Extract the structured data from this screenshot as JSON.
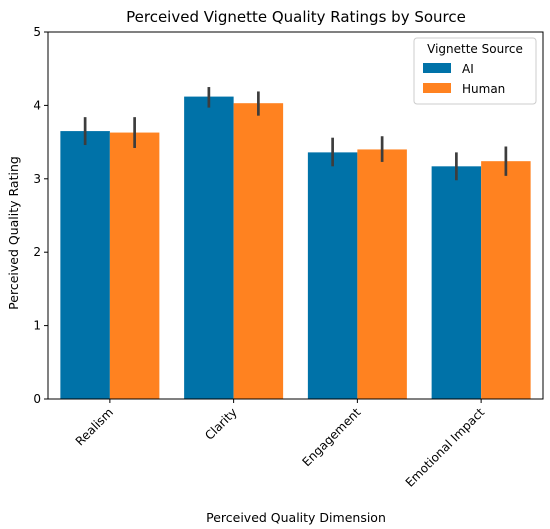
{
  "chart_data": {
    "type": "bar",
    "title": "Perceived Vignette Quality Ratings by Source",
    "xlabel": "Perceived Quality Dimension",
    "ylabel": "Perceived Quality Rating",
    "ylim": [
      0,
      5
    ],
    "yticks": [
      "0",
      "1",
      "2",
      "3",
      "4",
      "5"
    ],
    "categories": [
      "Realism",
      "Clarity",
      "Engagement",
      "Emotional Impact"
    ],
    "series": [
      {
        "name": "AI",
        "color": "#0072a8",
        "values": [
          3.65,
          4.12,
          3.36,
          3.17
        ],
        "ci_low": [
          3.46,
          3.97,
          3.17,
          2.98
        ],
        "ci_high": [
          3.84,
          4.25,
          3.56,
          3.36
        ]
      },
      {
        "name": "Human",
        "color": "#ff8220",
        "values": [
          3.63,
          4.03,
          3.4,
          3.24
        ],
        "ci_low": [
          3.42,
          3.86,
          3.23,
          3.04
        ],
        "ci_high": [
          3.84,
          4.19,
          3.58,
          3.44
        ]
      }
    ],
    "legend": {
      "title": "Vignette Source",
      "position": "top-right"
    },
    "grid": false
  }
}
